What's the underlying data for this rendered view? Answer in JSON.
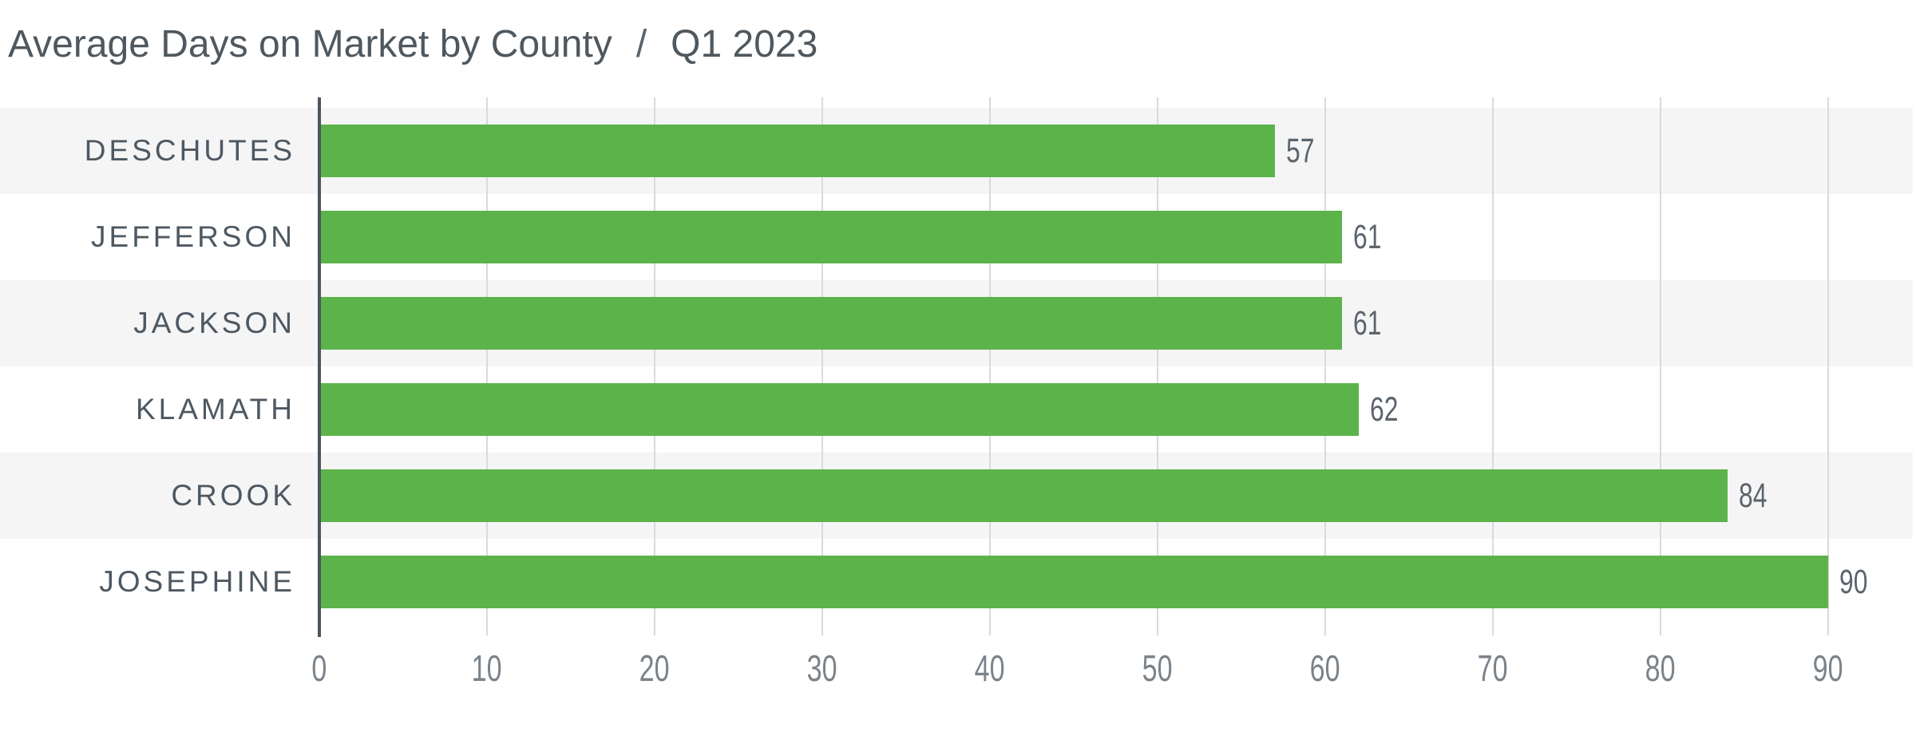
{
  "header": {
    "title": "Average Days on Market by County",
    "separator": "/",
    "period": "Q1 2023"
  },
  "chart_data": {
    "type": "bar",
    "orientation": "horizontal",
    "title": "Average Days on Market by County",
    "subtitle": "Q1 2023",
    "categories": [
      "DESCHUTES",
      "JEFFERSON",
      "JACKSON",
      "KLAMATH",
      "CROOK",
      "JOSEPHINE"
    ],
    "values": [
      57,
      61,
      61,
      62,
      84,
      90
    ],
    "value_labels": [
      "57",
      "61",
      "61",
      "62",
      "84",
      "90"
    ],
    "xlim": [
      0,
      95
    ],
    "xticks": [
      0,
      10,
      20,
      30,
      40,
      50,
      60,
      70,
      80,
      90
    ],
    "xtick_labels": [
      "0",
      "10",
      "20",
      "30",
      "40",
      "50",
      "60",
      "70",
      "80",
      "90"
    ],
    "grid": true,
    "legend": false,
    "colors": {
      "bar": "#5cb34a",
      "row_band": "#f5f5f6",
      "gridline": "#d9dadb",
      "axis_line": "#4c555e",
      "category_label": "#4d5862",
      "value_label": "#5c646d",
      "tick_label": "#7b838a",
      "title": "#4f585f"
    }
  }
}
